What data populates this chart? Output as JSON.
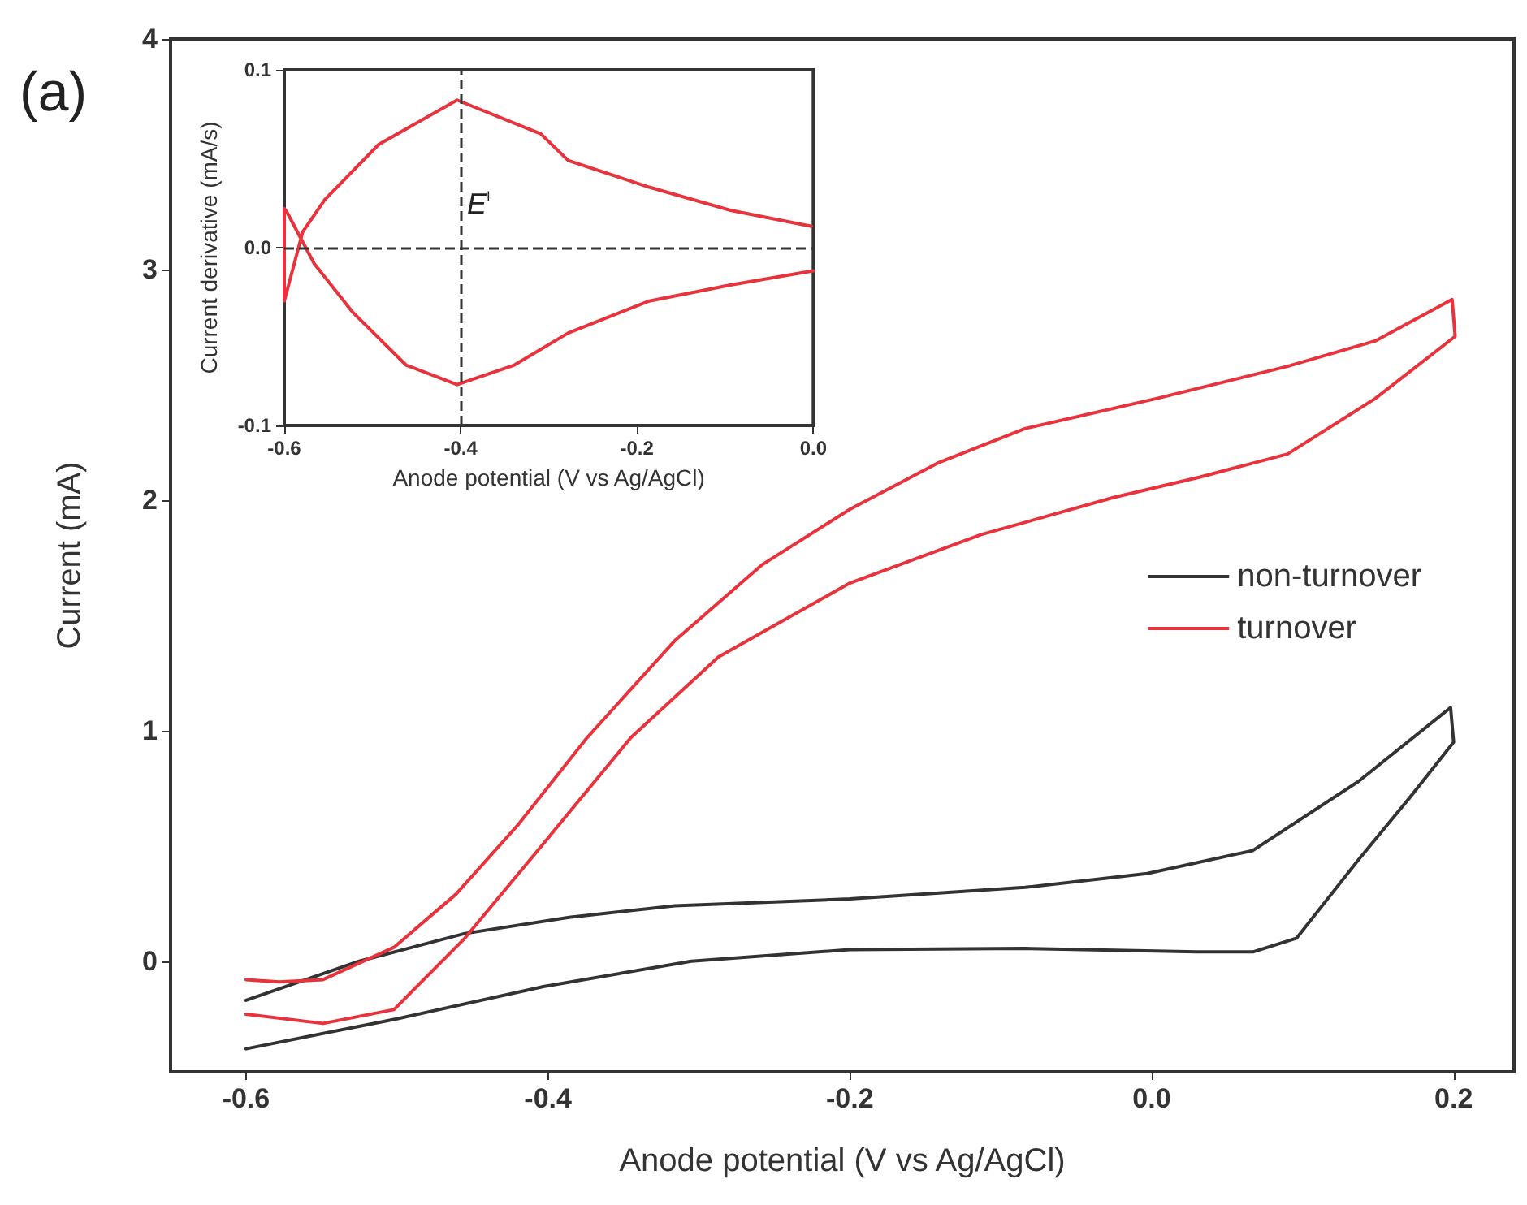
{
  "chart_data": [
    {
      "type": "line",
      "xlabel": "Anode potential (V vs Ag/AgCl)",
      "ylabel": "Current (mA)",
      "xlim": [
        -0.65,
        0.24
      ],
      "ylim": [
        -0.48,
        4
      ],
      "xticks": [
        -0.6,
        -0.4,
        -0.2,
        {
          "value": 0,
          "label": "0.0"
        },
        0.2
      ],
      "yticks": [
        0,
        1,
        2,
        3,
        4
      ],
      "legend": "right",
      "grid": false,
      "marker": "none",
      "line_style": "solid",
      "annotations": [
        "(a)"
      ],
      "series": [
        {
          "name": "non-turnover",
          "color": "#333333",
          "x": [
            -0.6,
            -0.5,
            -0.403,
            -0.305,
            -0.2,
            -0.084,
            0.03,
            0.067,
            0.096,
            0.137,
            0.171,
            0.2,
            0.198,
            0.137,
            0.067,
            -0.003,
            -0.084,
            -0.2,
            -0.316,
            -0.386,
            -0.455,
            -0.525,
            -0.6
          ],
          "values": [
            -0.38,
            -0.25,
            -0.11,
            0.0,
            0.05,
            0.055,
            0.04,
            0.04,
            0.1,
            0.44,
            0.71,
            0.95,
            1.1,
            0.78,
            0.48,
            0.38,
            0.32,
            0.27,
            0.24,
            0.19,
            0.12,
            0.0,
            -0.17
          ]
        },
        {
          "name": "turnover",
          "color": "#e8323c",
          "x": [
            -0.6,
            -0.549,
            -0.502,
            -0.455,
            -0.403,
            -0.345,
            -0.287,
            -0.2,
            -0.113,
            -0.026,
            0.032,
            0.09,
            0.148,
            0.201,
            0.199,
            0.148,
            0.09,
            0.003,
            -0.084,
            -0.142,
            -0.2,
            -0.258,
            -0.316,
            -0.374,
            -0.42,
            -0.461,
            -0.502,
            -0.549,
            -0.578,
            -0.6
          ],
          "values": [
            -0.23,
            -0.27,
            -0.21,
            0.1,
            0.51,
            0.97,
            1.32,
            1.64,
            1.85,
            2.01,
            2.1,
            2.2,
            2.44,
            2.71,
            2.87,
            2.69,
            2.58,
            2.44,
            2.31,
            2.16,
            1.96,
            1.72,
            1.39,
            0.97,
            0.59,
            0.29,
            0.06,
            -0.08,
            -0.09,
            -0.08
          ]
        }
      ]
    },
    {
      "type": "line",
      "xlabel": "Anode potential (V vs Ag/AgCl)",
      "ylabel": "Current derivative (mA/s)",
      "xlim": [
        -0.6,
        0
      ],
      "ylim": [
        -0.1,
        0.1
      ],
      "xticks": [
        -0.6,
        -0.4,
        -0.2,
        {
          "value": 0,
          "label": "0.0"
        }
      ],
      "yticks": [
        -0.1,
        {
          "value": 0,
          "label": "0.0"
        },
        0.1
      ],
      "grid": false,
      "marker": "none",
      "line_style": "solid",
      "annotations": [
        {
          "text": "E$^{I}$",
          "x": -0.4,
          "y": 0
        }
      ],
      "ref_lines": [
        {
          "axis": "y",
          "value": 0,
          "line_style": "dashed",
          "color": "#333333"
        },
        {
          "axis": "x",
          "value": -0.4,
          "line_style": "dashed",
          "color": "#333333"
        }
      ],
      "series": [
        {
          "color": "#e8323c",
          "x": [
            -0.002,
            -0.094,
            -0.186,
            -0.278,
            -0.309,
            -0.404,
            -0.493,
            -0.554,
            -0.579,
            -0.6,
            -0.6,
            -0.597,
            -0.566,
            -0.523,
            -0.462,
            -0.404,
            -0.339,
            -0.278,
            -0.186,
            -0.094,
            0
          ],
          "values": [
            0.012,
            0.021,
            0.034,
            0.049,
            0.064,
            0.083,
            0.058,
            0.027,
            0.009,
            -0.03,
            0.022,
            0.02,
            -0.009,
            -0.036,
            -0.066,
            -0.077,
            -0.066,
            -0.048,
            -0.03,
            -0.021,
            -0.013
          ]
        }
      ]
    }
  ]
}
